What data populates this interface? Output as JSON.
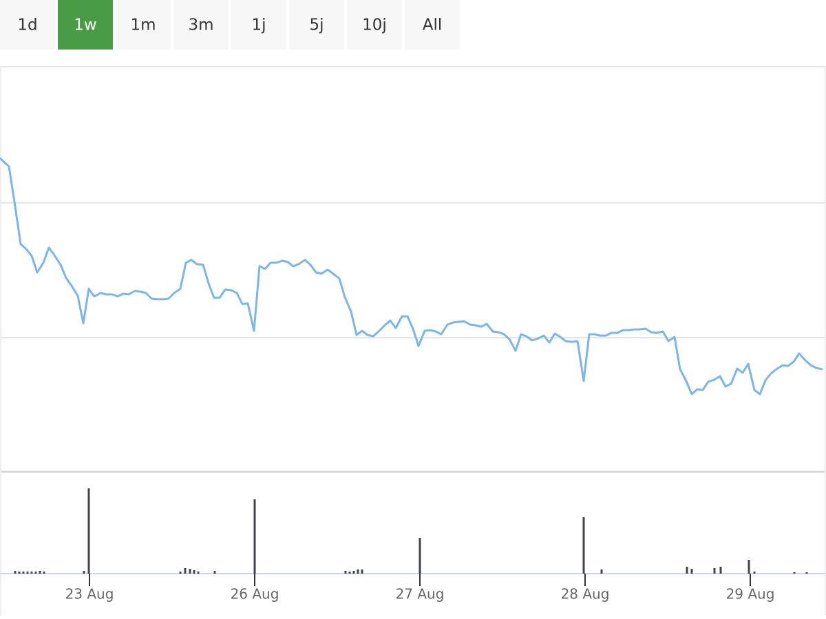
{
  "range_selector": {
    "buttons": [
      "1d",
      "1w",
      "1m",
      "3m",
      "1j",
      "5j",
      "10j",
      "All"
    ],
    "selected": 1
  },
  "chart_data": [
    {
      "type": "line",
      "color": "#7cb5ec",
      "xlim": [
        0,
        1200
      ],
      "ylim": [
        0,
        588
      ],
      "x": [
        0,
        13,
        22,
        30,
        38,
        46,
        54,
        63,
        71,
        79,
        88,
        96,
        105,
        113,
        121,
        129,
        137,
        146,
        154,
        163,
        171,
        179,
        187,
        196,
        204,
        212,
        220,
        229,
        237,
        245,
        253,
        262,
        270,
        278,
        286,
        295,
        303,
        311,
        319,
        327,
        336,
        344,
        352,
        360,
        369,
        377,
        385,
        393,
        402,
        410,
        418,
        426,
        434,
        443,
        451,
        459,
        467,
        476,
        484,
        493,
        501,
        510,
        518,
        526,
        534,
        542,
        550,
        559,
        567,
        575,
        584,
        592,
        600,
        608,
        617,
        625,
        633,
        641,
        650,
        658,
        666,
        674,
        683,
        691,
        699,
        707,
        716,
        724,
        732,
        740,
        749,
        757,
        765,
        773,
        782,
        790,
        798,
        806,
        814,
        822,
        831,
        839,
        848,
        856,
        864,
        872,
        880,
        888,
        897,
        905,
        913,
        921,
        930,
        938,
        946,
        954,
        963,
        971,
        980,
        988,
        996,
        1005,
        1013,
        1021,
        1029,
        1038,
        1046,
        1054,
        1062,
        1071,
        1079,
        1087,
        1096,
        1104,
        1112,
        1120,
        1129,
        1137,
        1145,
        1153,
        1161,
        1170,
        1178,
        1186,
        1195
      ],
      "values": [
        455,
        443,
        385,
        330,
        323,
        313,
        289,
        303,
        325,
        314,
        300,
        281,
        268,
        255,
        215,
        265,
        254,
        259,
        257,
        257,
        254,
        258,
        257,
        262,
        261,
        259,
        251,
        250,
        250,
        251,
        259,
        265,
        303,
        307,
        301,
        300,
        273,
        252,
        252,
        264,
        263,
        259,
        243,
        244,
        204,
        298,
        294,
        303,
        303,
        306,
        304,
        298,
        301,
        307,
        300,
        289,
        287,
        293,
        287,
        280,
        253,
        232,
        198,
        204,
        198,
        196,
        203,
        212,
        219,
        208,
        225,
        225,
        207,
        182,
        204,
        205,
        203,
        199,
        213,
        216,
        217,
        218,
        213,
        212,
        210,
        214,
        203,
        202,
        199,
        192,
        175,
        199,
        196,
        190,
        193,
        197,
        187,
        200,
        195,
        189,
        188,
        189,
        131,
        199,
        199,
        197,
        197,
        201,
        201,
        205,
        205,
        206,
        206,
        207,
        202,
        201,
        203,
        189,
        195,
        148,
        133,
        112,
        119,
        118,
        130,
        133,
        138,
        123,
        127,
        149,
        143,
        156,
        118,
        112,
        132,
        142,
        149,
        154,
        153,
        159,
        171,
        161,
        154,
        150,
        148
      ]
    },
    {
      "type": "bar",
      "color": "#434348",
      "xlim": [
        0,
        1200
      ],
      "ylim": [
        0,
        130
      ],
      "x": [
        22,
        28,
        34,
        40,
        46,
        52,
        58,
        64,
        122,
        129,
        262,
        269,
        276,
        282,
        288,
        312,
        370,
        502,
        508,
        514,
        520,
        526,
        610,
        848,
        874,
        998,
        1005,
        1038,
        1047,
        1088,
        1096,
        1154,
        1172
      ],
      "values": [
        4,
        3,
        3,
        3,
        3,
        3,
        4,
        3,
        4,
        124,
        3,
        8,
        7,
        5,
        3,
        4,
        108,
        4,
        3,
        4,
        6,
        6,
        52,
        82,
        6,
        10,
        7,
        8,
        10,
        20,
        3,
        2,
        2
      ],
      "xticks": [
        {
          "value": 130,
          "label": "23 Aug"
        },
        {
          "value": 370,
          "label": "26 Aug"
        },
        {
          "value": 610,
          "label": "27 Aug"
        },
        {
          "value": 850,
          "label": "28 Aug"
        },
        {
          "value": 1090,
          "label": "29 Aug"
        }
      ]
    }
  ]
}
